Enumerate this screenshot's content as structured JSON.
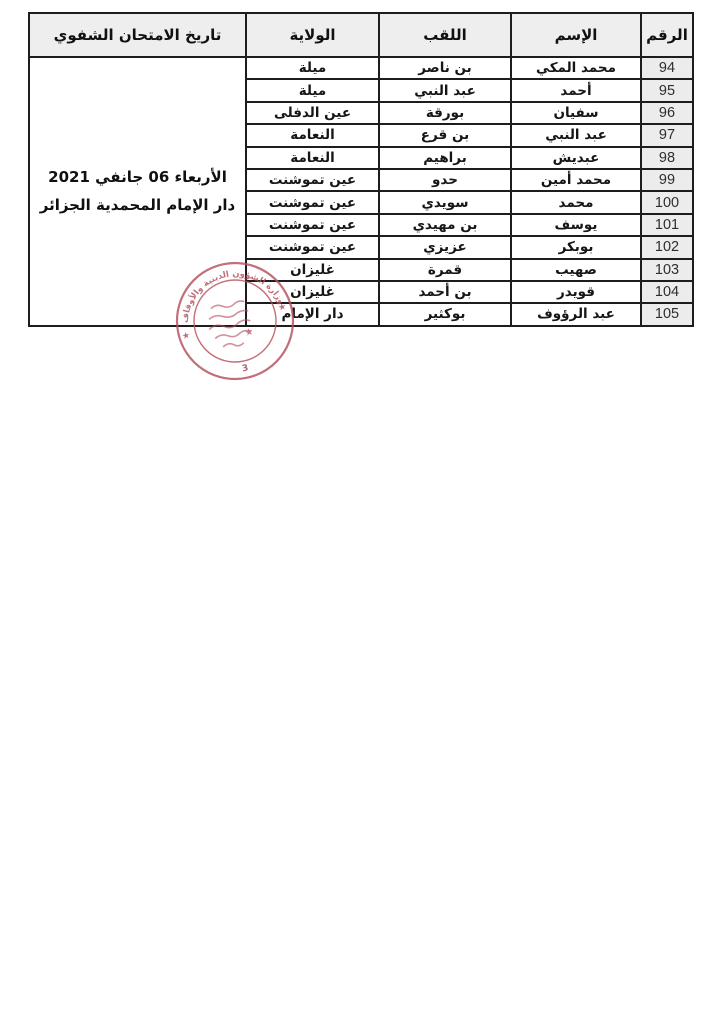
{
  "table": {
    "headers": {
      "number": "الرقم",
      "name": "الإسم",
      "surname": "اللقب",
      "wilaya": "الولاية",
      "exam_date": "تاريخ الامتحان الشفوي"
    },
    "date_cell": {
      "line1": "الأربعاء 06 جانفي 2021",
      "line2": "دار الإمام المحمدية الجزائر"
    },
    "rows": [
      {
        "number": "94",
        "name": "محمد المكي",
        "surname": "بن ناصر",
        "wilaya": "ميلة"
      },
      {
        "number": "95",
        "name": "أحمد",
        "surname": "عبد النبي",
        "wilaya": "ميلة"
      },
      {
        "number": "96",
        "name": "سفيان",
        "surname": "بورقة",
        "wilaya": "عين الدفلى"
      },
      {
        "number": "97",
        "name": "عبد النبي",
        "surname": "بن قرع",
        "wilaya": "النعامة"
      },
      {
        "number": "98",
        "name": "عبديش",
        "surname": "براهيم",
        "wilaya": "النعامة"
      },
      {
        "number": "99",
        "name": "محمد أمين",
        "surname": "حدو",
        "wilaya": "عين تموشنت"
      },
      {
        "number": "100",
        "name": "محمد",
        "surname": "سويدي",
        "wilaya": "عين تموشنت"
      },
      {
        "number": "101",
        "name": "يوسف",
        "surname": "بن مهيدي",
        "wilaya": "عين تموشنت"
      },
      {
        "number": "102",
        "name": "بوبكر",
        "surname": "عزيزي",
        "wilaya": "عين تموشنت"
      },
      {
        "number": "103",
        "name": "صهيب",
        "surname": "قمرة",
        "wilaya": "غليزان"
      },
      {
        "number": "104",
        "name": "قويدر",
        "surname": "بن أحمد",
        "wilaya": "غليزان"
      },
      {
        "number": "105",
        "name": "عبد الرؤوف",
        "surname": "بوكثير",
        "wilaya": "دار الإمام"
      }
    ]
  },
  "stamp": {
    "rim_text": "وزارة الشؤون الدينية والأوقاف",
    "bottom_number": "3",
    "color": "#b5505c"
  },
  "colors": {
    "header_bg": "#eeeeee",
    "number_bg": "#ececec",
    "border": "#1d1d1d"
  }
}
